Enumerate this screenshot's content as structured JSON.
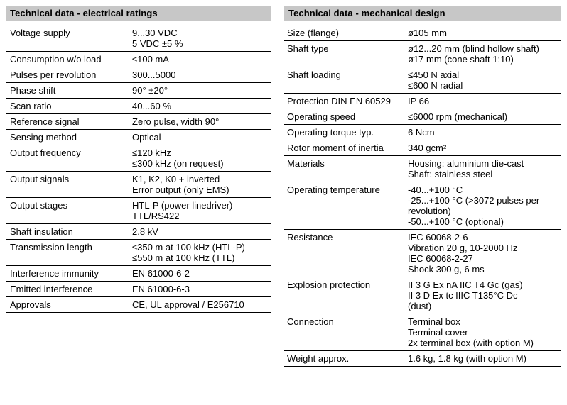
{
  "colors": {
    "page_bg": "#ffffff",
    "header_bg": "#c7c7c7",
    "rule": "#000000",
    "text": "#000000"
  },
  "left_table": {
    "title": "Technical data - electrical ratings",
    "rows": [
      {
        "label": "Voltage supply",
        "value": "9...30 VDC\n5 VDC ±5 %"
      },
      {
        "label": "Consumption w/o load",
        "value": "≤100 mA"
      },
      {
        "label": "Pulses per revolution",
        "value": "300...5000"
      },
      {
        "label": "Phase shift",
        "value": "90° ±20°"
      },
      {
        "label": "Scan ratio",
        "value": "40...60 %"
      },
      {
        "label": "Reference signal",
        "value": "Zero pulse, width 90°"
      },
      {
        "label": "Sensing method",
        "value": "Optical"
      },
      {
        "label": "Output frequency",
        "value": "≤120 kHz\n≤300 kHz (on request)"
      },
      {
        "label": "Output signals",
        "value": "K1, K2, K0 + inverted\nError output (only EMS)"
      },
      {
        "label": "Output stages",
        "value": "HTL-P (power linedriver)\nTTL/RS422"
      },
      {
        "label": "Shaft insulation",
        "value": "2.8 kV"
      },
      {
        "label": "Transmission length",
        "value": "≤350 m at 100 kHz (HTL-P)\n≤550 m at 100 kHz (TTL)"
      },
      {
        "label": "Interference immunity",
        "value": "EN 61000-6-2"
      },
      {
        "label": "Emitted interference",
        "value": "EN 61000-6-3"
      },
      {
        "label": "Approvals",
        "value": "CE, UL approval / E256710"
      }
    ]
  },
  "right_table": {
    "title": "Technical data - mechanical design",
    "rows": [
      {
        "label": "Size (flange)",
        "value": "ø105 mm"
      },
      {
        "label": "Shaft type",
        "value": "ø12...20 mm (blind hollow shaft)\nø17 mm (cone shaft 1:10)"
      },
      {
        "label": "Shaft loading",
        "value": "≤450 N axial\n≤600 N radial"
      },
      {
        "label": "Protection DIN EN 60529",
        "value": "IP 66"
      },
      {
        "label": "Operating speed",
        "value": "≤6000 rpm (mechanical)"
      },
      {
        "label": "Operating torque typ.",
        "value": "6 Ncm"
      },
      {
        "label": "Rotor moment of inertia",
        "value": "340 gcm²"
      },
      {
        "label": "Materials",
        "value": "Housing: aluminium die-cast\nShaft: stainless steel"
      },
      {
        "label": "Operating temperature",
        "value": "-40...+100 °C\n-25...+100 °C (>3072 pulses per\nrevolution)\n-50...+100 °C (optional)"
      },
      {
        "label": "Resistance",
        "value": "IEC 60068-2-6\nVibration 20 g, 10-2000 Hz\nIEC 60068-2-27\nShock 300 g, 6 ms"
      },
      {
        "label": "Explosion protection",
        "value": "II 3 G Ex nA IIC T4 Gc (gas)\nII 3 D Ex tc IIIC T135°C Dc\n(dust)"
      },
      {
        "label": "Connection",
        "value": "Terminal box\nTerminal cover\n2x terminal box (with option M)"
      },
      {
        "label": "Weight approx.",
        "value": "1.6 kg, 1.8 kg (with option M)"
      }
    ]
  }
}
